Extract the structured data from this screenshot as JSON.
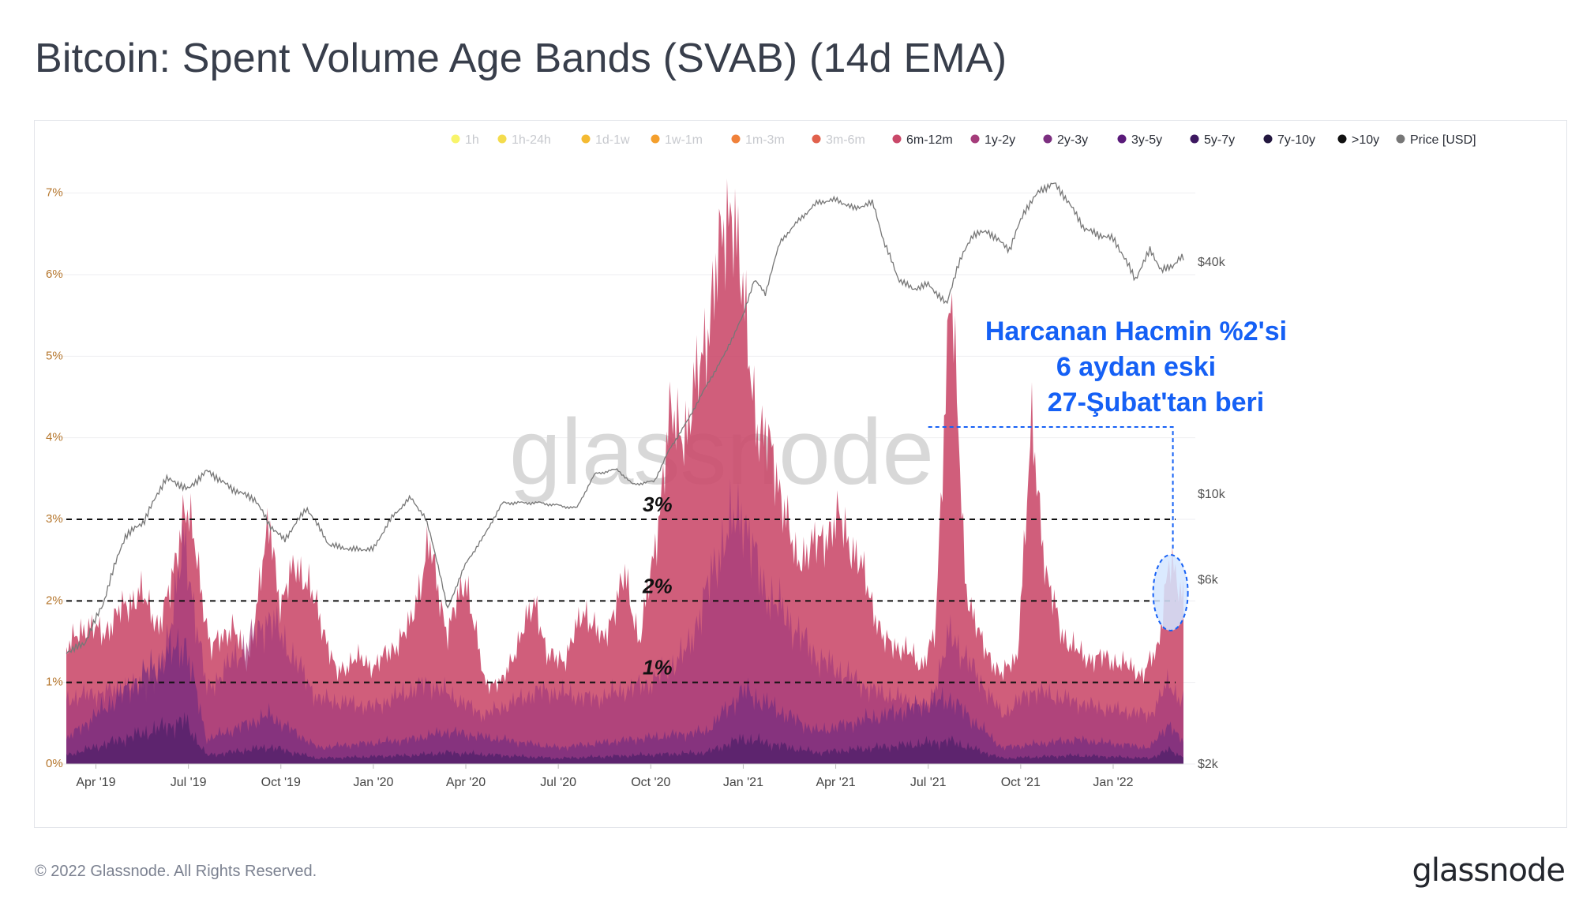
{
  "header": {
    "title": "Bitcoin: Spent Volume Age Bands (SVAB) (14d EMA)"
  },
  "footer": {
    "copyright": "© 2022 Glassnode. All Rights Reserved.",
    "brand": "glassnode"
  },
  "watermark": "glassnode",
  "colors": {
    "left_axis": "#b5762c",
    "price_line": "#777777",
    "annotation": "#1560f5",
    "highlight_fill": "#d5e6ff"
  },
  "legend": [
    {
      "label": "1h",
      "color": "#f7f35a",
      "active": false
    },
    {
      "label": "1h-24h",
      "color": "#f3d83a",
      "active": false
    },
    {
      "label": "1d-1w",
      "color": "#f3b21c",
      "active": false
    },
    {
      "label": "1w-1m",
      "color": "#f39516",
      "active": false
    },
    {
      "label": "1m-3m",
      "color": "#ee7325",
      "active": false
    },
    {
      "label": "3m-6m",
      "color": "#de5038",
      "active": false
    },
    {
      "label": "6m-12m",
      "color": "#c94869",
      "active": true
    },
    {
      "label": "1y-2y",
      "color": "#a53c7b",
      "active": true
    },
    {
      "label": "2y-3y",
      "color": "#7c2f80",
      "active": true
    },
    {
      "label": "3y-5y",
      "color": "#5a1a7a",
      "active": true
    },
    {
      "label": "5y-7y",
      "color": "#3c1760",
      "active": true
    },
    {
      "label": "7y-10y",
      "color": "#23173f",
      "active": true
    },
    {
      "label": ">10y",
      "color": "#111111",
      "active": true
    },
    {
      "label": "Price [USD]",
      "color": "#777777",
      "active": true
    }
  ],
  "annotations": {
    "text_lines": [
      "Harcanan Hacmin %2'si",
      "6 aydan eski",
      "27-Şubat'tan beri"
    ],
    "level_labels": [
      "3%",
      "2%",
      "1%"
    ]
  },
  "chart_data": {
    "type": "area",
    "stacked": true,
    "x_tick_labels": [
      "Apr '19",
      "Jul '19",
      "Oct '19",
      "Jan '20",
      "Apr '20",
      "Jul '20",
      "Oct '20",
      "Jan '21",
      "Apr '21",
      "Jul '21",
      "Oct '21",
      "Jan '22"
    ],
    "x_range": [
      "2019-03-01",
      "2022-03-15"
    ],
    "y_left": {
      "tick_labels": [
        "0%",
        "1%",
        "2%",
        "3%",
        "4%",
        "5%",
        "6%",
        "7%"
      ],
      "range": [
        0,
        7.5
      ],
      "unit": "%"
    },
    "y_right": {
      "tick_labels": [
        "$2k",
        "$6k",
        "$10k",
        "$40k"
      ],
      "tick_values": [
        2000,
        6000,
        10000,
        40000
      ],
      "scale": "log",
      "range": [
        2000,
        70000
      ]
    },
    "reference_lines": [
      3,
      2,
      1
    ],
    "series_total_6m_plus": [
      [
        2019.17,
        1.4
      ],
      [
        2019.22,
        1.7
      ],
      [
        2019.27,
        1.6
      ],
      [
        2019.32,
        1.9
      ],
      [
        2019.37,
        2.1
      ],
      [
        2019.42,
        1.7
      ],
      [
        2019.45,
        2.1
      ],
      [
        2019.49,
        3.2
      ],
      [
        2019.52,
        2.6
      ],
      [
        2019.56,
        1.4
      ],
      [
        2019.62,
        1.7
      ],
      [
        2019.66,
        1.2
      ],
      [
        2019.72,
        3.0
      ],
      [
        2019.75,
        1.9
      ],
      [
        2019.79,
        2.5
      ],
      [
        2019.85,
        1.9
      ],
      [
        2019.9,
        1.1
      ],
      [
        2019.95,
        1.3
      ],
      [
        2020.0,
        1.2
      ],
      [
        2020.05,
        1.4
      ],
      [
        2020.1,
        1.7
      ],
      [
        2020.15,
        2.7
      ],
      [
        2020.2,
        1.6
      ],
      [
        2020.25,
        2.3
      ],
      [
        2020.3,
        1.0
      ],
      [
        2020.35,
        1.0
      ],
      [
        2020.4,
        1.6
      ],
      [
        2020.44,
        2.0
      ],
      [
        2020.47,
        1.3
      ],
      [
        2020.52,
        1.3
      ],
      [
        2020.57,
        1.9
      ],
      [
        2020.62,
        1.5
      ],
      [
        2020.68,
        2.3
      ],
      [
        2020.72,
        1.5
      ],
      [
        2020.76,
        2.6
      ],
      [
        2020.8,
        4.2
      ],
      [
        2020.85,
        4.1
      ],
      [
        2020.9,
        5.3
      ],
      [
        2020.94,
        6.3
      ],
      [
        2020.97,
        7.0
      ],
      [
        2021.0,
        5.6
      ],
      [
        2021.04,
        4.1
      ],
      [
        2021.08,
        3.8
      ],
      [
        2021.14,
        2.5
      ],
      [
        2021.2,
        2.7
      ],
      [
        2021.26,
        3.0
      ],
      [
        2021.32,
        2.4
      ],
      [
        2021.38,
        1.5
      ],
      [
        2021.44,
        1.4
      ],
      [
        2021.48,
        1.2
      ],
      [
        2021.52,
        1.6
      ],
      [
        2021.56,
        6.1
      ],
      [
        2021.6,
        2.2
      ],
      [
        2021.65,
        1.4
      ],
      [
        2021.7,
        1.1
      ],
      [
        2021.74,
        1.3
      ],
      [
        2021.78,
        4.1
      ],
      [
        2021.82,
        2.3
      ],
      [
        2021.86,
        1.6
      ],
      [
        2021.92,
        1.3
      ],
      [
        2021.98,
        1.3
      ],
      [
        2022.04,
        1.2
      ],
      [
        2022.08,
        1.1
      ],
      [
        2022.12,
        1.4
      ],
      [
        2022.15,
        2.5
      ],
      [
        2022.18,
        2.1
      ]
    ],
    "series_1y_plus": [
      [
        2019.17,
        0.8
      ],
      [
        2019.3,
        0.9
      ],
      [
        2019.42,
        1.0
      ],
      [
        2019.49,
        2.7
      ],
      [
        2019.55,
        0.9
      ],
      [
        2019.72,
        1.8
      ],
      [
        2019.85,
        0.8
      ],
      [
        2020.0,
        0.7
      ],
      [
        2020.15,
        1.0
      ],
      [
        2020.3,
        0.6
      ],
      [
        2020.45,
        0.9
      ],
      [
        2020.6,
        0.8
      ],
      [
        2020.75,
        1.0
      ],
      [
        2020.85,
        1.4
      ],
      [
        2020.95,
        2.8
      ],
      [
        2021.0,
        3.1
      ],
      [
        2021.05,
        2.2
      ],
      [
        2021.2,
        1.3
      ],
      [
        2021.35,
        0.9
      ],
      [
        2021.5,
        0.7
      ],
      [
        2021.56,
        1.6
      ],
      [
        2021.7,
        0.6
      ],
      [
        2021.78,
        0.9
      ],
      [
        2021.95,
        0.7
      ],
      [
        2022.1,
        0.6
      ],
      [
        2022.15,
        1.0
      ],
      [
        2022.18,
        0.8
      ]
    ],
    "series_2y_plus": [
      [
        2019.17,
        0.3
      ],
      [
        2019.49,
        1.5
      ],
      [
        2019.55,
        0.3
      ],
      [
        2019.72,
        0.6
      ],
      [
        2019.85,
        0.2
      ],
      [
        2020.1,
        0.3
      ],
      [
        2020.2,
        0.4
      ],
      [
        2020.5,
        0.2
      ],
      [
        2020.9,
        0.4
      ],
      [
        2021.0,
        0.9
      ],
      [
        2021.2,
        0.4
      ],
      [
        2021.56,
        0.8
      ],
      [
        2021.7,
        0.2
      ],
      [
        2021.9,
        0.3
      ],
      [
        2022.1,
        0.2
      ],
      [
        2022.15,
        0.5
      ],
      [
        2022.18,
        0.3
      ]
    ],
    "series_price_usd": [
      [
        2019.17,
        3900
      ],
      [
        2019.22,
        4100
      ],
      [
        2019.27,
        5200
      ],
      [
        2019.33,
        7800
      ],
      [
        2019.38,
        8500
      ],
      [
        2019.44,
        11000
      ],
      [
        2019.5,
        10300
      ],
      [
        2019.55,
        11500
      ],
      [
        2019.62,
        10300
      ],
      [
        2019.68,
        9700
      ],
      [
        2019.72,
        8300
      ],
      [
        2019.76,
        7600
      ],
      [
        2019.82,
        9200
      ],
      [
        2019.88,
        7400
      ],
      [
        2019.94,
        7200
      ],
      [
        2020.0,
        7200
      ],
      [
        2020.05,
        8700
      ],
      [
        2020.1,
        9800
      ],
      [
        2020.14,
        8700
      ],
      [
        2020.2,
        5000
      ],
      [
        2020.25,
        6600
      ],
      [
        2020.3,
        7800
      ],
      [
        2020.35,
        9500
      ],
      [
        2020.45,
        9500
      ],
      [
        2020.55,
        9200
      ],
      [
        2020.6,
        11300
      ],
      [
        2020.66,
        11600
      ],
      [
        2020.7,
        10600
      ],
      [
        2020.76,
        10800
      ],
      [
        2020.8,
        13000
      ],
      [
        2020.85,
        15500
      ],
      [
        2020.9,
        19000
      ],
      [
        2020.95,
        23000
      ],
      [
        2021.0,
        29000
      ],
      [
        2021.03,
        36000
      ],
      [
        2021.06,
        33000
      ],
      [
        2021.1,
        45000
      ],
      [
        2021.14,
        50000
      ],
      [
        2021.2,
        57000
      ],
      [
        2021.25,
        58000
      ],
      [
        2021.3,
        55000
      ],
      [
        2021.35,
        57000
      ],
      [
        2021.38,
        45000
      ],
      [
        2021.42,
        36000
      ],
      [
        2021.46,
        34000
      ],
      [
        2021.5,
        35000
      ],
      [
        2021.55,
        31000
      ],
      [
        2021.58,
        39000
      ],
      [
        2021.62,
        47000
      ],
      [
        2021.66,
        48000
      ],
      [
        2021.72,
        43000
      ],
      [
        2021.76,
        54000
      ],
      [
        2021.8,
        61000
      ],
      [
        2021.84,
        64000
      ],
      [
        2021.88,
        57000
      ],
      [
        2021.92,
        49000
      ],
      [
        2021.96,
        47000
      ],
      [
        2022.0,
        46000
      ],
      [
        2022.03,
        41000
      ],
      [
        2022.06,
        36000
      ],
      [
        2022.1,
        43000
      ],
      [
        2022.13,
        38000
      ],
      [
        2022.16,
        39000
      ],
      [
        2022.18,
        41000
      ]
    ]
  }
}
